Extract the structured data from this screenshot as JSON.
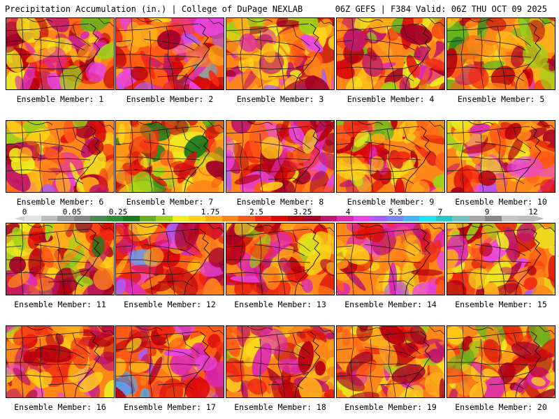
{
  "header": {
    "title": "Precipitation Accumulation (in.) | College of DuPage NEXLAB",
    "run_info": "06Z GEFS | F384 Valid: 06Z THU OCT 09 2025"
  },
  "colors": {
    "scale": [
      "#e4e4e4",
      "#bdbdbd",
      "#9c9c9c",
      "#858585",
      "#4a8a52",
      "#2e8b36",
      "#1a7a1e",
      "#62b01e",
      "#9cd31a",
      "#eded20",
      "#ffd219",
      "#ffae19",
      "#ff8619",
      "#ff5a16",
      "#f22a12",
      "#dd0a0a",
      "#b8000e",
      "#a40028",
      "#c0186a",
      "#dd2ab0",
      "#e845e3",
      "#ab5cf2",
      "#7c83f7",
      "#49b5f4",
      "#1fe3f2",
      "#28c8c6",
      "#72c2c2",
      "#a7a7a7",
      "#878787",
      "#c6c6c6",
      "#bcbcbc"
    ],
    "text": "#000000",
    "background": "#ffffff"
  },
  "colorbar": {
    "labels": [
      "0",
      "0.05",
      "0.25",
      "1",
      "1.75",
      "2.5",
      "3.25",
      "4",
      "5.5",
      "7",
      "9",
      "12"
    ]
  },
  "panels": [
    {
      "caption": "Ensemble Member: 1",
      "wetness": 0.55
    },
    {
      "caption": "Ensemble Member: 2",
      "wetness": 0.75
    },
    {
      "caption": "Ensemble Member: 3",
      "wetness": 0.6
    },
    {
      "caption": "Ensemble Member: 4",
      "wetness": 0.5
    },
    {
      "caption": "Ensemble Member: 5",
      "wetness": 0.4
    },
    {
      "caption": "Ensemble Member: 6",
      "wetness": 0.55
    },
    {
      "caption": "Ensemble Member: 7",
      "wetness": 0.35
    },
    {
      "caption": "Ensemble Member: 8",
      "wetness": 0.65
    },
    {
      "caption": "Ensemble Member: 9",
      "wetness": 0.5
    },
    {
      "caption": "Ensemble Member: 10",
      "wetness": 0.6
    },
    {
      "caption": "Ensemble Member: 11",
      "wetness": 0.45
    },
    {
      "caption": "Ensemble Member: 12",
      "wetness": 0.75
    },
    {
      "caption": "Ensemble Member: 13",
      "wetness": 0.55
    },
    {
      "caption": "Ensemble Member: 14",
      "wetness": 0.6
    },
    {
      "caption": "Ensemble Member: 15",
      "wetness": 0.6
    },
    {
      "caption": "Ensemble Member: 16",
      "wetness": 0.6
    },
    {
      "caption": "Ensemble Member: 17",
      "wetness": 0.7
    },
    {
      "caption": "Ensemble Member: 18",
      "wetness": 0.55
    },
    {
      "caption": "Ensemble Member: 19",
      "wetness": 0.5
    },
    {
      "caption": "Ensemble Member: 20",
      "wetness": 0.5
    }
  ]
}
